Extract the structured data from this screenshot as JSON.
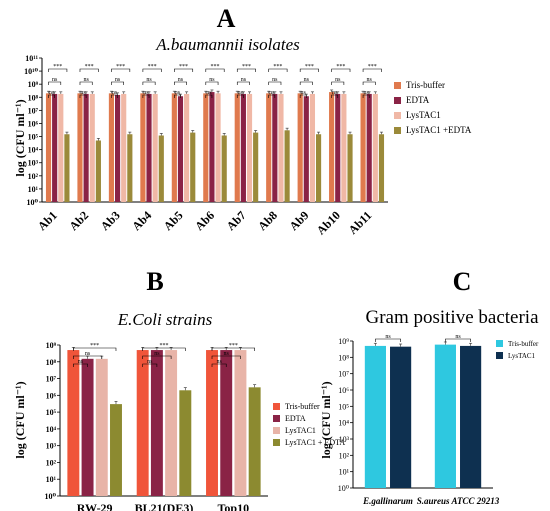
{
  "chart_data": [
    {
      "panel": "A",
      "type": "bar",
      "title": "A.baumannii isolates",
      "ylabel": "log (CFU ml⁻¹)",
      "yscale": "log",
      "ylim_exp": [
        0,
        11
      ],
      "categories": [
        "Ab1",
        "Ab2",
        "Ab3",
        "Ab4",
        "Ab5",
        "Ab6",
        "Ab7",
        "Ab8",
        "Ab9",
        "Ab10",
        "Ab11"
      ],
      "series": [
        {
          "name": "Tris-buffer",
          "color": "#e07a4e",
          "values": [
            200000000.0,
            200000000.0,
            200000000.0,
            200000000.0,
            200000000.0,
            200000000.0,
            200000000.0,
            200000000.0,
            200000000.0,
            250000000.0,
            200000000.0
          ]
        },
        {
          "name": "EDTA",
          "color": "#8a2346",
          "values": [
            180000000.0,
            180000000.0,
            150000000.0,
            180000000.0,
            120000000.0,
            250000000.0,
            180000000.0,
            180000000.0,
            120000000.0,
            180000000.0,
            180000000.0
          ]
        },
        {
          "name": "LysTAC1",
          "color": "#f0b8a6",
          "values": [
            180000000.0,
            180000000.0,
            180000000.0,
            180000000.0,
            180000000.0,
            200000000.0,
            180000000.0,
            180000000.0,
            180000000.0,
            180000000.0,
            180000000.0
          ]
        },
        {
          "name": "LysTAC1 +EDTA",
          "color": "#9b8a3a",
          "values": [
            150000.0,
            50000.0,
            150000.0,
            120000.0,
            200000.0,
            120000.0,
            200000.0,
            300000.0,
            150000.0,
            150000.0,
            150000.0
          ]
        }
      ],
      "significance": [
        {
          "pair": "Tris-buffer vs LysTAC1 +EDTA",
          "labels": [
            "***",
            "***",
            "***",
            "***",
            "***",
            "***",
            "***",
            "***",
            "***",
            "***",
            "***"
          ]
        },
        {
          "pair": "Tris-buffer vs LysTAC1",
          "labels": [
            "ns",
            "ns",
            "ns",
            "ns",
            "ns",
            "ns",
            "ns",
            "ns",
            "ns",
            "ns",
            "ns"
          ]
        },
        {
          "pair": "Tris-buffer vs EDTA",
          "labels": [
            "ns",
            "ns",
            "ns",
            "ns",
            "ns",
            "ns",
            "ns",
            "ns",
            "ns",
            "ns",
            "ns"
          ]
        }
      ],
      "legend_position": "right"
    },
    {
      "panel": "B",
      "type": "bar",
      "title": "E.Coli strains",
      "ylabel": "log (CFU ml⁻¹)",
      "yscale": "log",
      "ylim_exp": [
        0,
        9
      ],
      "categories": [
        "RW-29",
        "BL21(DE3)",
        "Top10"
      ],
      "series": [
        {
          "name": "Tris-buffer",
          "color": "#f0553a",
          "values": [
            500000000.0,
            500000000.0,
            500000000.0
          ]
        },
        {
          "name": "EDTA",
          "color": "#8a2346",
          "values": [
            150000000.0,
            500000000.0,
            500000000.0
          ]
        },
        {
          "name": "LysTAC1",
          "color": "#e8b4a8",
          "values": [
            150000000.0,
            500000000.0,
            500000000.0
          ]
        },
        {
          "name": "LysTAC1 + EDTA",
          "color": "#8c8a30",
          "values": [
            300000.0,
            2000000.0,
            3000000.0
          ]
        }
      ],
      "significance": [
        {
          "pair": "Tris-buffer vs LysTAC1 + EDTA",
          "labels": [
            "***",
            "***",
            "***"
          ]
        },
        {
          "pair": "Tris-buffer vs LysTAC1",
          "labels": [
            "ns",
            "ns",
            "ns"
          ]
        },
        {
          "pair": "Tris-buffer vs EDTA",
          "labels": [
            "ns",
            "ns",
            "ns"
          ]
        }
      ],
      "legend_position": "right"
    },
    {
      "panel": "C",
      "type": "bar",
      "title": "Gram positive bacteria",
      "ylabel": "log (CFU ml⁻¹)",
      "yscale": "log",
      "ylim_exp": [
        0,
        9
      ],
      "categories": [
        "E.gallinarum",
        "S.aureus ATCC 29213"
      ],
      "series": [
        {
          "name": "Tris-buffer",
          "color": "#2ec8e0",
          "values": [
            500000000.0,
            600000000.0
          ]
        },
        {
          "name": "LysTAC1",
          "color": "#0e3050",
          "values": [
            450000000.0,
            500000000.0
          ]
        }
      ],
      "significance": [
        {
          "pair": "Tris-buffer vs LysTAC1",
          "labels": [
            "ns",
            "ns"
          ]
        }
      ],
      "legend_position": "right"
    }
  ]
}
